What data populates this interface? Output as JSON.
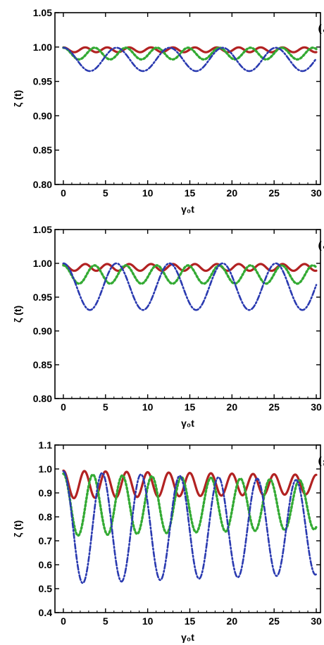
{
  "chart_data": [
    {
      "type": "line",
      "panel_label": "الف)",
      "xlabel": "γ₀t",
      "ylabel": "ζ (t)",
      "xlim": [
        -1,
        30.5
      ],
      "ylim": [
        0.8,
        1.05
      ],
      "xticks": [
        "0",
        "5",
        "10",
        "15",
        "20",
        "25",
        "30"
      ],
      "yticks": [
        "0.80",
        "0.85",
        "0.90",
        "0.95",
        "1.00",
        "1.05"
      ],
      "grid": false,
      "series": [
        {
          "style": "solid",
          "color": "#b22222",
          "params": {
            "mean": 0.996,
            "amp": 0.0035,
            "period": 2.6,
            "decay": 0.0
          }
        },
        {
          "style": "dotted",
          "color": "#33aa33",
          "params": {
            "mean": 0.9905,
            "amp": 0.0085,
            "period": 3.7,
            "decay": 0.0
          }
        },
        {
          "style": "dashdot",
          "color": "#2a3ab0",
          "params": {
            "mean": 0.982,
            "amp": 0.017,
            "period": 6.3,
            "decay": 0.0
          }
        }
      ]
    },
    {
      "type": "line",
      "panel_label": "ب)",
      "xlabel": "γ₀t",
      "ylabel": "ζ (t)",
      "xlim": [
        -1,
        30.5
      ],
      "ylim": [
        0.8,
        1.05
      ],
      "xticks": [
        "0",
        "5",
        "10",
        "15",
        "20",
        "25",
        "30"
      ],
      "yticks": [
        "0.80",
        "0.85",
        "0.90",
        "0.95",
        "1.00",
        "1.05"
      ],
      "grid": false,
      "series": [
        {
          "style": "solid",
          "color": "#b22222",
          "params": {
            "mean": 0.994,
            "amp": 0.005,
            "period": 2.6,
            "decay": 0.0
          }
        },
        {
          "style": "dotted",
          "color": "#33aa33",
          "params": {
            "mean": 0.9835,
            "amp": 0.0135,
            "period": 3.7,
            "decay": 0.0
          }
        },
        {
          "style": "dashdot",
          "color": "#2a3ab0",
          "params": {
            "mean": 0.9655,
            "amp": 0.0345,
            "period": 6.3,
            "decay": 0.0
          }
        }
      ]
    },
    {
      "type": "line",
      "panel_label": "ج)",
      "xlabel": "γ₀t",
      "ylabel": "ζ (t)",
      "xlim": [
        -1,
        30.5
      ],
      "ylim": [
        0.4,
        1.1
      ],
      "xticks": [
        "0",
        "5",
        "10",
        "15",
        "20",
        "25",
        "30"
      ],
      "yticks": [
        "0.4",
        "0.5",
        "0.6",
        "0.7",
        "0.8",
        "0.9",
        "1.0",
        "1.1"
      ],
      "grid": false,
      "series": [
        {
          "style": "solid",
          "color": "#b22222",
          "params": {
            "mean": 0.935,
            "amp": 0.058,
            "period": 2.5,
            "decay": 0.012
          }
        },
        {
          "style": "dotted",
          "color": "#33aa33",
          "params": {
            "mean": 0.85,
            "amp": 0.13,
            "period": 3.5,
            "decay": 0.008
          }
        },
        {
          "style": "dashdot",
          "color": "#2a3ab0",
          "params": {
            "mean": 0.755,
            "amp": 0.235,
            "period": 4.6,
            "decay": 0.006
          }
        }
      ]
    }
  ]
}
